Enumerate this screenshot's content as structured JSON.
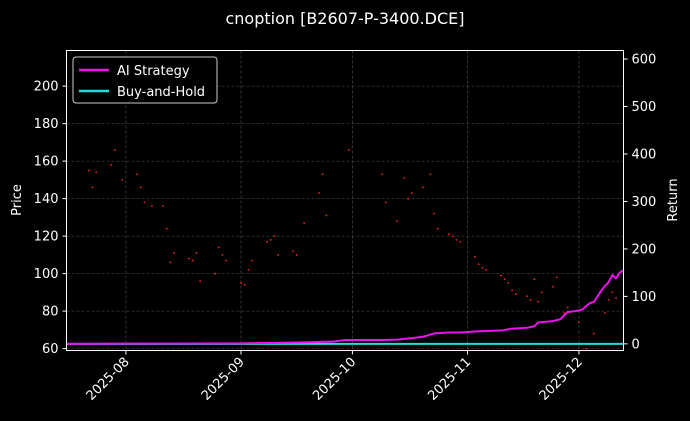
{
  "chart_data": {
    "type": "line",
    "title": "cnoption [B2607-P-3400.DCE]",
    "xlabel": "",
    "ylabel": "Price",
    "y2label": "Return",
    "ylim": [
      59,
      219
    ],
    "y2lim": [
      -14,
      618
    ],
    "xlim": [
      "2025-07-16",
      "2025-12-13"
    ],
    "yticks": [
      60,
      80,
      100,
      120,
      140,
      160,
      180,
      200
    ],
    "y2ticks": [
      0,
      100,
      200,
      300,
      400,
      500,
      600
    ],
    "xticks": [
      "2025-08",
      "2025-09",
      "2025-10",
      "2025-11",
      "2025-12"
    ],
    "grid": true,
    "legend": "top-left",
    "colors": {
      "ai": "#ee11ee",
      "bh": "#22dddd",
      "price_dots": "#ff2222",
      "grid": "#555555"
    },
    "price_points": [
      {
        "x": "2025-07-22",
        "y": 155
      },
      {
        "x": "2025-07-23",
        "y": 146
      },
      {
        "x": "2025-07-24",
        "y": 154
      },
      {
        "x": "2025-07-28",
        "y": 158
      },
      {
        "x": "2025-07-29",
        "y": 166
      },
      {
        "x": "2025-07-31",
        "y": 150
      },
      {
        "x": "2025-08-04",
        "y": 153
      },
      {
        "x": "2025-08-05",
        "y": 146
      },
      {
        "x": "2025-08-06",
        "y": 138
      },
      {
        "x": "2025-08-08",
        "y": 136
      },
      {
        "x": "2025-08-11",
        "y": 136
      },
      {
        "x": "2025-08-12",
        "y": 124
      },
      {
        "x": "2025-08-13",
        "y": 106
      },
      {
        "x": "2025-08-14",
        "y": 111
      },
      {
        "x": "2025-08-18",
        "y": 108
      },
      {
        "x": "2025-08-19",
        "y": 107
      },
      {
        "x": "2025-08-20",
        "y": 111
      },
      {
        "x": "2025-08-21",
        "y": 96
      },
      {
        "x": "2025-08-25",
        "y": 100
      },
      {
        "x": "2025-08-26",
        "y": 114
      },
      {
        "x": "2025-08-27",
        "y": 110
      },
      {
        "x": "2025-08-28",
        "y": 107
      },
      {
        "x": "2025-09-01",
        "y": 95
      },
      {
        "x": "2025-09-02",
        "y": 94
      },
      {
        "x": "2025-09-03",
        "y": 102
      },
      {
        "x": "2025-09-04",
        "y": 107
      },
      {
        "x": "2025-09-08",
        "y": 117
      },
      {
        "x": "2025-09-09",
        "y": 118
      },
      {
        "x": "2025-09-10",
        "y": 120
      },
      {
        "x": "2025-09-11",
        "y": 110
      },
      {
        "x": "2025-09-15",
        "y": 112
      },
      {
        "x": "2025-09-16",
        "y": 110
      },
      {
        "x": "2025-09-18",
        "y": 127
      },
      {
        "x": "2025-09-22",
        "y": 143
      },
      {
        "x": "2025-09-23",
        "y": 153
      },
      {
        "x": "2025-09-24",
        "y": 131
      },
      {
        "x": "2025-09-30",
        "y": 166
      },
      {
        "x": "2025-10-09",
        "y": 153
      },
      {
        "x": "2025-10-10",
        "y": 138
      },
      {
        "x": "2025-10-13",
        "y": 128
      },
      {
        "x": "2025-10-15",
        "y": 151
      },
      {
        "x": "2025-10-16",
        "y": 140
      },
      {
        "x": "2025-10-17",
        "y": 143
      },
      {
        "x": "2025-10-20",
        "y": 146
      },
      {
        "x": "2025-10-22",
        "y": 153
      },
      {
        "x": "2025-10-23",
        "y": 132
      },
      {
        "x": "2025-10-24",
        "y": 124
      },
      {
        "x": "2025-10-27",
        "y": 121
      },
      {
        "x": "2025-10-28",
        "y": 120
      },
      {
        "x": "2025-10-29",
        "y": 118
      },
      {
        "x": "2025-10-30",
        "y": 117
      },
      {
        "x": "2025-11-03",
        "y": 109
      },
      {
        "x": "2025-11-04",
        "y": 105
      },
      {
        "x": "2025-11-05",
        "y": 103
      },
      {
        "x": "2025-11-06",
        "y": 102
      },
      {
        "x": "2025-11-10",
        "y": 99
      },
      {
        "x": "2025-11-11",
        "y": 97
      },
      {
        "x": "2025-11-12",
        "y": 95
      },
      {
        "x": "2025-11-13",
        "y": 91
      },
      {
        "x": "2025-11-14",
        "y": 89
      },
      {
        "x": "2025-11-17",
        "y": 88
      },
      {
        "x": "2025-11-18",
        "y": 86
      },
      {
        "x": "2025-11-19",
        "y": 97
      },
      {
        "x": "2025-11-20",
        "y": 85
      },
      {
        "x": "2025-11-21",
        "y": 90
      },
      {
        "x": "2025-11-24",
        "y": 93
      },
      {
        "x": "2025-11-25",
        "y": 98
      },
      {
        "x": "2025-11-27",
        "y": 79
      },
      {
        "x": "2025-11-28",
        "y": 82
      },
      {
        "x": "2025-12-01",
        "y": 74
      },
      {
        "x": "2025-12-03",
        "y": 60
      },
      {
        "x": "2025-12-05",
        "y": 68
      },
      {
        "x": "2025-12-08",
        "y": 79
      },
      {
        "x": "2025-12-09",
        "y": 86
      },
      {
        "x": "2025-12-10",
        "y": 90
      },
      {
        "x": "2025-12-11",
        "y": 87
      }
    ],
    "series": [
      {
        "name": "AI Strategy",
        "points": [
          {
            "x": "2025-07-16",
            "y": 0
          },
          {
            "x": "2025-08-31",
            "y": 1
          },
          {
            "x": "2025-09-10",
            "y": 2
          },
          {
            "x": "2025-09-18",
            "y": 3
          },
          {
            "x": "2025-09-26",
            "y": 5
          },
          {
            "x": "2025-09-29",
            "y": 8
          },
          {
            "x": "2025-10-09",
            "y": 8
          },
          {
            "x": "2025-10-13",
            "y": 9
          },
          {
            "x": "2025-10-17",
            "y": 12
          },
          {
            "x": "2025-10-20",
            "y": 15
          },
          {
            "x": "2025-10-23",
            "y": 22
          },
          {
            "x": "2025-10-27",
            "y": 24
          },
          {
            "x": "2025-10-30",
            "y": 24
          },
          {
            "x": "2025-11-03",
            "y": 26
          },
          {
            "x": "2025-11-06",
            "y": 27
          },
          {
            "x": "2025-11-10",
            "y": 28
          },
          {
            "x": "2025-11-13",
            "y": 32
          },
          {
            "x": "2025-11-17",
            "y": 34
          },
          {
            "x": "2025-11-19",
            "y": 37
          },
          {
            "x": "2025-11-20",
            "y": 45
          },
          {
            "x": "2025-11-24",
            "y": 48
          },
          {
            "x": "2025-11-26",
            "y": 52
          },
          {
            "x": "2025-11-27",
            "y": 60
          },
          {
            "x": "2025-11-28",
            "y": 67
          },
          {
            "x": "2025-12-01",
            "y": 70
          },
          {
            "x": "2025-12-02",
            "y": 73
          },
          {
            "x": "2025-12-03",
            "y": 80
          },
          {
            "x": "2025-12-04",
            "y": 86
          },
          {
            "x": "2025-12-05",
            "y": 88
          },
          {
            "x": "2025-12-06",
            "y": 100
          },
          {
            "x": "2025-12-07",
            "y": 112
          },
          {
            "x": "2025-12-08",
            "y": 122
          },
          {
            "x": "2025-12-09",
            "y": 130
          },
          {
            "x": "2025-12-10",
            "y": 145
          },
          {
            "x": "2025-12-11",
            "y": 138
          },
          {
            "x": "2025-12-12",
            "y": 150
          },
          {
            "x": "2025-12-13",
            "y": 155
          }
        ]
      },
      {
        "name": "Buy-and-Hold",
        "points": [
          {
            "x": "2025-07-16",
            "y": 0
          },
          {
            "x": "2025-12-13",
            "y": 0
          }
        ]
      }
    ]
  }
}
